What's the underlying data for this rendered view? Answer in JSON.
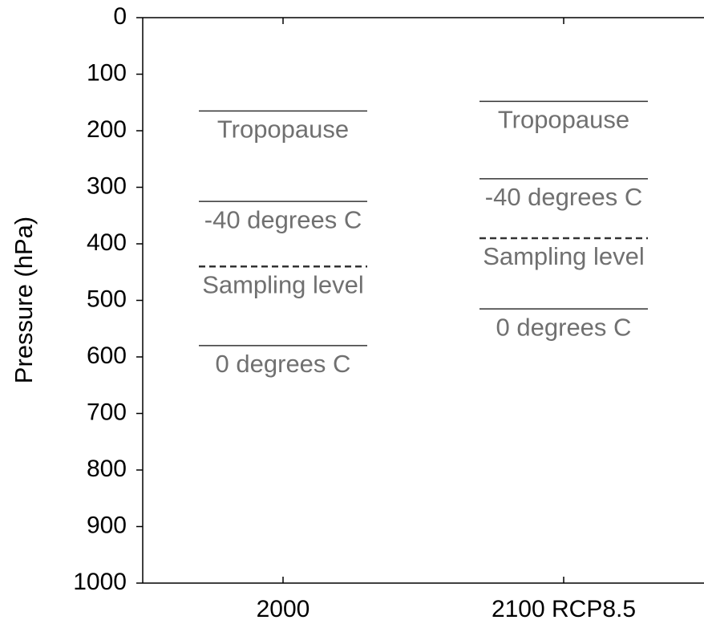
{
  "chart_data": {
    "type": "level",
    "y_label": "Pressure (hPa)",
    "categories": [
      "2000",
      "2100 RCP8.5"
    ],
    "ylim": [
      0,
      1000
    ],
    "y_inverted": true,
    "yticks": [
      0,
      100,
      200,
      300,
      400,
      500,
      600,
      700,
      800,
      900,
      1000
    ],
    "line_color": "#333333",
    "label_color": "#707070",
    "series": [
      {
        "name": "Tropopause",
        "dashed": false,
        "values": [
          165,
          148
        ]
      },
      {
        "name": "-40 degrees C",
        "dashed": false,
        "values": [
          325,
          285
        ]
      },
      {
        "name": "Sampling level",
        "dashed": true,
        "values": [
          440,
          390
        ]
      },
      {
        "name": "0 degrees C",
        "dashed": false,
        "values": [
          580,
          515
        ]
      }
    ]
  }
}
